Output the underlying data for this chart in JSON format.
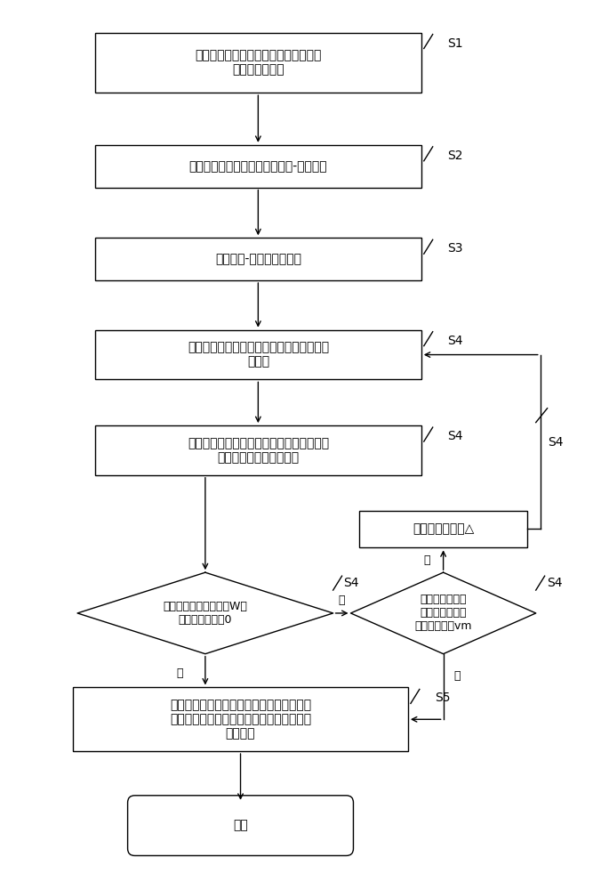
{
  "bg_color": "#ffffff",
  "line_color": "#000000",
  "text_color": "#000000",
  "font_size": 10,
  "small_font_size": 9,
  "label_font_size": 10,
  "s1_text": "获取车道信息数据、信号配时方案数据\n和交通流量数据",
  "s2_text": "获取信号配时方案表，构建车道-相位映射",
  "s3_text": "提取相位-阶段分布关系表",
  "s4a_text": "设定各相位的目标饱和度，计算各相位需求\n绿信比",
  "s4b_text": "利用线性规划的方法优化各控制时段的周期\n长度及其阶段的绿灯时间",
  "d1_text": "判断优化后的目标函数W值\n是否小于或等于0",
  "d2_text": "目标饱和度是否\n大于或等于最大\n可容忍饱和度vm",
  "s4e_text": "目标饱和度增加△",
  "s5_text": "输出最终的优化后的周期长度及各阶段绿灯\n时长，将结果输入路口交通控制系统，实现\n优化控制",
  "end_text": "结束",
  "yes": "是",
  "no": "否"
}
